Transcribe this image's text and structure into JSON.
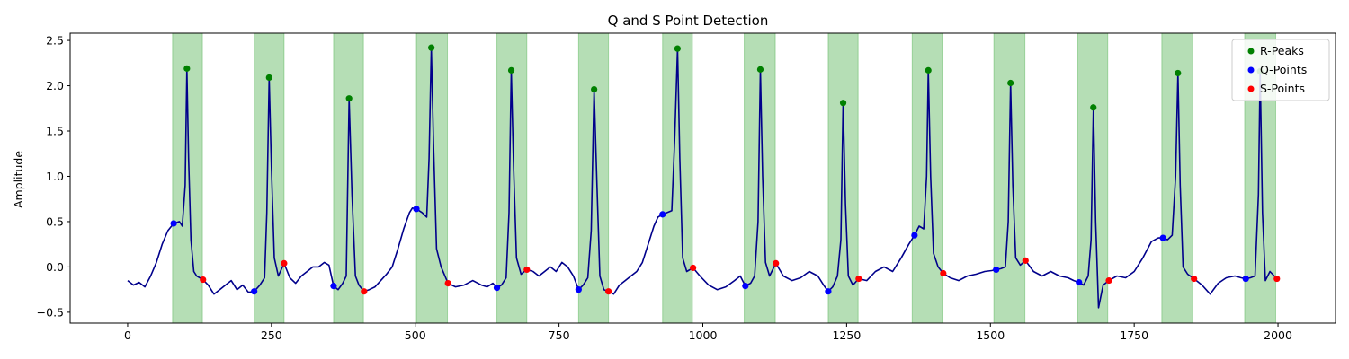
{
  "chart_data": {
    "type": "line",
    "title": "Q and S Point Detection",
    "xlabel": "",
    "ylabel": "Amplitude",
    "xlim": [
      -100,
      2100
    ],
    "ylim": [
      -0.62,
      2.58
    ],
    "xticks": [
      0,
      250,
      500,
      750,
      1000,
      1250,
      1500,
      1750,
      2000
    ],
    "yticks": [
      -0.5,
      0.0,
      0.5,
      1.0,
      1.5,
      2.0,
      2.5
    ],
    "xtick_labels": [
      "0",
      "250",
      "500",
      "750",
      "1000",
      "1250",
      "1500",
      "1750",
      "2000"
    ],
    "ytick_labels": [
      "−0.5",
      "0.0",
      "0.5",
      "1.0",
      "1.5",
      "2.0",
      "2.5"
    ],
    "grid": false,
    "legend_position": "top-right",
    "colors": {
      "signal": "#00008b",
      "r_peaks": "#008000",
      "q_points": "#0000ff",
      "s_points": "#ff0000",
      "shade": "#2ca02c"
    },
    "shaded_regions": [
      [
        78,
        130
      ],
      [
        220,
        272
      ],
      [
        358,
        410
      ],
      [
        502,
        556
      ],
      [
        642,
        694
      ],
      [
        784,
        836
      ],
      [
        930,
        982
      ],
      [
        1072,
        1126
      ],
      [
        1218,
        1270
      ],
      [
        1364,
        1416
      ],
      [
        1506,
        1560
      ],
      [
        1652,
        1704
      ],
      [
        1798,
        1852
      ],
      [
        1942,
        1996
      ]
    ],
    "r_peaks": {
      "name": "R-Peaks",
      "x": [
        103,
        246,
        385,
        528,
        667,
        811,
        956,
        1100,
        1244,
        1392,
        1535,
        1679,
        1826,
        1969
      ],
      "y": [
        2.19,
        2.09,
        1.86,
        2.42,
        2.17,
        1.96,
        2.41,
        2.18,
        1.81,
        2.17,
        2.03,
        1.76,
        2.14,
        2.16
      ]
    },
    "q_points": {
      "name": "Q-Points",
      "x": [
        80,
        220,
        358,
        502,
        642,
        784,
        930,
        1074,
        1218,
        1368,
        1510,
        1654,
        1800,
        1944
      ],
      "y": [
        0.48,
        -0.27,
        -0.21,
        0.64,
        -0.23,
        -0.25,
        0.58,
        -0.21,
        -0.27,
        0.35,
        -0.03,
        -0.17,
        0.32,
        -0.13
      ]
    },
    "s_points": {
      "name": "S-Points",
      "x": [
        131,
        272,
        411,
        557,
        694,
        836,
        983,
        1127,
        1271,
        1418,
        1561,
        1706,
        1854,
        1998
      ],
      "y": [
        -0.14,
        0.04,
        -0.27,
        -0.18,
        -0.03,
        -0.27,
        -0.01,
        0.04,
        -0.13,
        -0.07,
        0.07,
        -0.15,
        -0.13,
        -0.13
      ]
    },
    "series": [
      {
        "name": "",
        "x": [
          0,
          10,
          20,
          30,
          40,
          50,
          60,
          70,
          80,
          90,
          95,
          100,
          103,
          106,
          110,
          115,
          120,
          131,
          140,
          150,
          160,
          170,
          180,
          190,
          200,
          210,
          220,
          230,
          238,
          242,
          246,
          250,
          255,
          262,
          272,
          282,
          292,
          302,
          312,
          322,
          332,
          342,
          350,
          358,
          366,
          374,
          380,
          385,
          390,
          396,
          402,
          411,
          420,
          430,
          440,
          450,
          460,
          470,
          480,
          490,
          495,
          502,
          512,
          520,
          524,
          528,
          532,
          537,
          545,
          557,
          570,
          585,
          600,
          615,
          625,
          635,
          642,
          650,
          658,
          663,
          667,
          671,
          676,
          684,
          694,
          705,
          715,
          725,
          735,
          745,
          755,
          765,
          775,
          784,
          792,
          800,
          806,
          811,
          816,
          821,
          828,
          836,
          845,
          855,
          865,
          875,
          885,
          895,
          905,
          915,
          922,
          930,
          938,
          946,
          951,
          956,
          960,
          965,
          972,
          983,
          995,
          1010,
          1025,
          1040,
          1055,
          1065,
          1074,
          1083,
          1090,
          1096,
          1100,
          1104,
          1109,
          1116,
          1127,
          1140,
          1155,
          1170,
          1185,
          1200,
          1210,
          1218,
          1226,
          1234,
          1240,
          1244,
          1248,
          1253,
          1261,
          1271,
          1285,
          1300,
          1315,
          1330,
          1345,
          1358,
          1368,
          1376,
          1384,
          1389,
          1392,
          1396,
          1401,
          1409,
          1418,
          1430,
          1445,
          1460,
          1475,
          1490,
          1502,
          1510,
          1518,
          1526,
          1531,
          1535,
          1539,
          1544,
          1552,
          1561,
          1575,
          1590,
          1605,
          1620,
          1635,
          1645,
          1654,
          1662,
          1670,
          1675,
          1679,
          1683,
          1688,
          1696,
          1706,
          1720,
          1735,
          1750,
          1765,
          1780,
          1792,
          1800,
          1808,
          1816,
          1822,
          1826,
          1830,
          1835,
          1843,
          1854,
          1868,
          1882,
          1896,
          1910,
          1925,
          1936,
          1944,
          1952,
          1960,
          1966,
          1969,
          1973,
          1978,
          1986,
          1998
        ],
        "y": [
          -0.15,
          -0.2,
          -0.17,
          -0.22,
          -0.1,
          0.05,
          0.25,
          0.4,
          0.48,
          0.5,
          0.45,
          0.9,
          2.19,
          1.2,
          0.3,
          -0.05,
          -0.1,
          -0.14,
          -0.2,
          -0.3,
          -0.25,
          -0.2,
          -0.15,
          -0.25,
          -0.2,
          -0.28,
          -0.27,
          -0.2,
          -0.12,
          0.6,
          2.09,
          1.1,
          0.1,
          -0.1,
          0.04,
          -0.12,
          -0.18,
          -0.1,
          -0.05,
          0.0,
          0.0,
          0.05,
          0.02,
          -0.21,
          -0.25,
          -0.18,
          -0.1,
          1.86,
          0.8,
          -0.1,
          -0.2,
          -0.27,
          -0.25,
          -0.22,
          -0.15,
          -0.08,
          0.0,
          0.2,
          0.42,
          0.6,
          0.65,
          0.64,
          0.6,
          0.55,
          1.2,
          2.42,
          1.3,
          0.2,
          0.0,
          -0.18,
          -0.22,
          -0.2,
          -0.15,
          -0.2,
          -0.22,
          -0.18,
          -0.23,
          -0.2,
          -0.12,
          0.6,
          2.17,
          1.1,
          0.1,
          -0.08,
          -0.03,
          -0.05,
          -0.1,
          -0.05,
          0.0,
          -0.05,
          0.05,
          0.0,
          -0.1,
          -0.25,
          -0.2,
          -0.12,
          0.4,
          1.96,
          0.9,
          -0.1,
          -0.25,
          -0.27,
          -0.3,
          -0.2,
          -0.15,
          -0.1,
          -0.05,
          0.05,
          0.25,
          0.45,
          0.55,
          0.58,
          0.6,
          0.62,
          1.4,
          2.41,
          1.2,
          0.1,
          -0.05,
          -0.01,
          -0.1,
          -0.2,
          -0.25,
          -0.22,
          -0.15,
          -0.1,
          -0.21,
          -0.18,
          -0.1,
          0.5,
          2.18,
          1.0,
          0.05,
          -0.1,
          0.04,
          -0.1,
          -0.15,
          -0.12,
          -0.05,
          -0.1,
          -0.2,
          -0.27,
          -0.22,
          -0.1,
          0.3,
          1.81,
          0.7,
          -0.1,
          -0.2,
          -0.13,
          -0.15,
          -0.05,
          0.0,
          -0.05,
          0.1,
          0.25,
          0.35,
          0.45,
          0.42,
          1.0,
          2.17,
          1.0,
          0.15,
          0.0,
          -0.07,
          -0.12,
          -0.15,
          -0.1,
          -0.08,
          -0.05,
          -0.04,
          -0.03,
          -0.02,
          0.0,
          0.5,
          2.03,
          0.9,
          0.1,
          0.02,
          0.07,
          -0.05,
          -0.1,
          -0.05,
          -0.1,
          -0.12,
          -0.15,
          -0.17,
          -0.2,
          -0.1,
          0.3,
          1.76,
          0.5,
          -0.45,
          -0.2,
          -0.15,
          -0.1,
          -0.12,
          -0.05,
          0.1,
          0.28,
          0.32,
          0.32,
          0.3,
          0.35,
          1.0,
          2.14,
          0.9,
          0.0,
          -0.08,
          -0.13,
          -0.2,
          -0.3,
          -0.18,
          -0.12,
          -0.1,
          -0.12,
          -0.13,
          -0.12,
          -0.1,
          0.8,
          2.16,
          0.6,
          -0.15,
          -0.05,
          -0.13
        ]
      }
    ]
  }
}
